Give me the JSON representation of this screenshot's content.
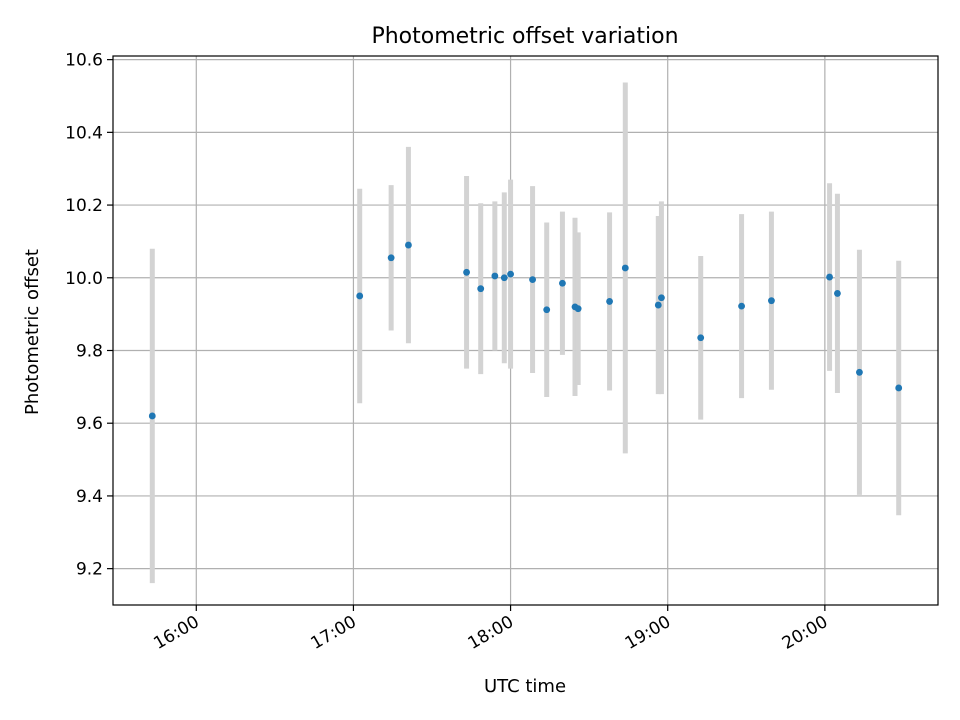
{
  "chart_data": {
    "type": "scatter",
    "title": "Photometric offset variation",
    "xlabel": "UTC time",
    "ylabel": "Photometric offset",
    "x_unit": "UTC hour (decimal)",
    "xlim": [
      15.47,
      20.72
    ],
    "ylim": [
      9.1,
      10.61
    ],
    "xticks": [
      {
        "value": 16,
        "label": "16:00"
      },
      {
        "value": 17,
        "label": "17:00"
      },
      {
        "value": 18,
        "label": "18:00"
      },
      {
        "value": 19,
        "label": "19:00"
      },
      {
        "value": 20,
        "label": "20:00"
      }
    ],
    "yticks": [
      {
        "value": 9.2,
        "label": "9.2"
      },
      {
        "value": 9.4,
        "label": "9.4"
      },
      {
        "value": 9.6,
        "label": "9.6"
      },
      {
        "value": 9.8,
        "label": "9.8"
      },
      {
        "value": 10.0,
        "label": "10.0"
      },
      {
        "value": 10.2,
        "label": "10.2"
      },
      {
        "value": 10.4,
        "label": "10.4"
      },
      {
        "value": 10.6,
        "label": "10.6"
      }
    ],
    "grid": true,
    "marker_color": "#1f77b4",
    "errorbar_color": "#d3d3d3",
    "points": [
      {
        "x": 15.72,
        "y": 9.62,
        "err": 0.46
      },
      {
        "x": 17.04,
        "y": 9.95,
        "err": 0.295
      },
      {
        "x": 17.24,
        "y": 10.055,
        "err": 0.2
      },
      {
        "x": 17.35,
        "y": 10.09,
        "err": 0.27
      },
      {
        "x": 17.72,
        "y": 10.015,
        "err": 0.265
      },
      {
        "x": 17.81,
        "y": 9.97,
        "err": 0.235
      },
      {
        "x": 17.9,
        "y": 10.005,
        "err": 0.205
      },
      {
        "x": 17.96,
        "y": 10.0,
        "err": 0.235
      },
      {
        "x": 18.0,
        "y": 10.01,
        "err": 0.26
      },
      {
        "x": 18.14,
        "y": 9.995,
        "err": 0.257
      },
      {
        "x": 18.23,
        "y": 9.912,
        "err": 0.24
      },
      {
        "x": 18.33,
        "y": 9.985,
        "err": 0.197
      },
      {
        "x": 18.41,
        "y": 9.92,
        "err": 0.245
      },
      {
        "x": 18.43,
        "y": 9.915,
        "err": 0.21
      },
      {
        "x": 18.63,
        "y": 9.935,
        "err": 0.245
      },
      {
        "x": 18.73,
        "y": 10.027,
        "err": 0.51
      },
      {
        "x": 18.94,
        "y": 9.925,
        "err": 0.245
      },
      {
        "x": 18.96,
        "y": 9.945,
        "err": 0.265
      },
      {
        "x": 19.21,
        "y": 9.835,
        "err": 0.225
      },
      {
        "x": 19.47,
        "y": 9.922,
        "err": 0.253
      },
      {
        "x": 19.66,
        "y": 9.937,
        "err": 0.245
      },
      {
        "x": 20.03,
        "y": 10.002,
        "err": 0.258
      },
      {
        "x": 20.08,
        "y": 9.957,
        "err": 0.274
      },
      {
        "x": 20.22,
        "y": 9.74,
        "err": 0.337
      },
      {
        "x": 20.47,
        "y": 9.697,
        "err": 0.35
      }
    ]
  }
}
